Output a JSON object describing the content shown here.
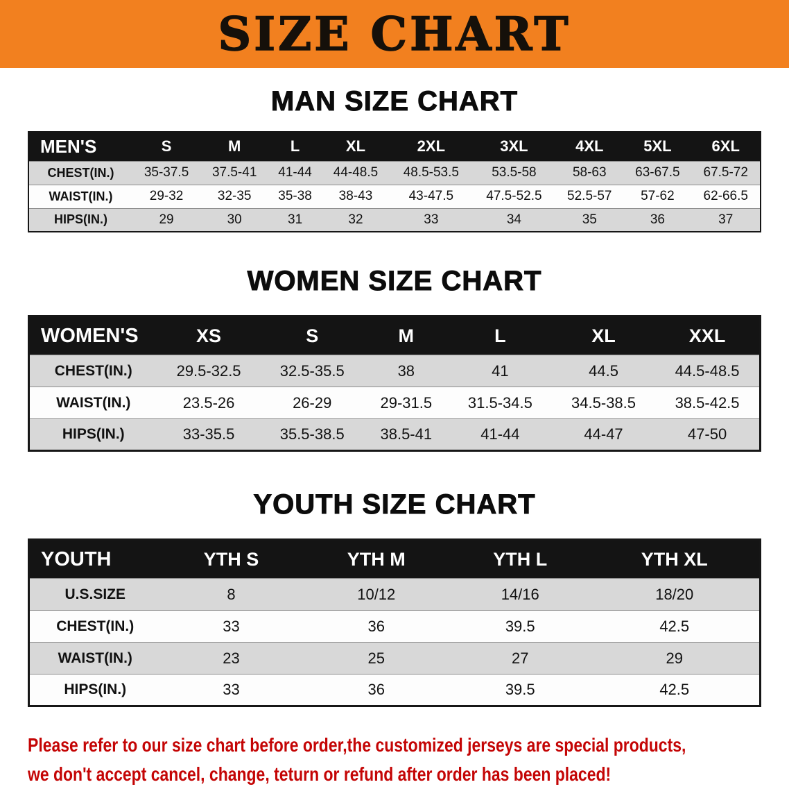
{
  "banner": {
    "title": "SIZE CHART",
    "bg_color": "#f2801f",
    "text_color": "#15100a"
  },
  "sections": [
    {
      "heading": "MAN SIZE CHART",
      "table": {
        "header": [
          "MEN'S",
          "S",
          "M",
          "L",
          "XL",
          "2XL",
          "3XL",
          "4XL",
          "5XL",
          "6XL"
        ],
        "rows": [
          [
            "CHEST(IN.)",
            "35-37.5",
            "37.5-41",
            "41-44",
            "44-48.5",
            "48.5-53.5",
            "53.5-58",
            "58-63",
            "63-67.5",
            "67.5-72"
          ],
          [
            "WAIST(IN.)",
            "29-32",
            "32-35",
            "35-38",
            "38-43",
            "43-47.5",
            "47.5-52.5",
            "52.5-57",
            "57-62",
            "62-66.5"
          ],
          [
            "HIPS(IN.)",
            "29",
            "30",
            "31",
            "32",
            "33",
            "34",
            "35",
            "36",
            "37"
          ]
        ]
      }
    },
    {
      "heading": "WOMEN SIZE CHART",
      "table": {
        "header": [
          "WOMEN'S",
          "XS",
          "S",
          "M",
          "L",
          "XL",
          "XXL"
        ],
        "rows": [
          [
            "CHEST(IN.)",
            "29.5-32.5",
            "32.5-35.5",
            "38",
            "41",
            "44.5",
            "44.5-48.5"
          ],
          [
            "WAIST(IN.)",
            "23.5-26",
            "26-29",
            "29-31.5",
            "31.5-34.5",
            "34.5-38.5",
            "38.5-42.5"
          ],
          [
            "HIPS(IN.)",
            "33-35.5",
            "35.5-38.5",
            "38.5-41",
            "41-44",
            "44-47",
            "47-50"
          ]
        ]
      }
    },
    {
      "heading": "YOUTH SIZE CHART",
      "table": {
        "header": [
          "YOUTH",
          "YTH S",
          "YTH M",
          "YTH L",
          "YTH XL"
        ],
        "rows": [
          [
            "U.S.SIZE",
            "8",
            "10/12",
            "14/16",
            "18/20"
          ],
          [
            "CHEST(IN.)",
            "33",
            "36",
            "39.5",
            "42.5"
          ],
          [
            "WAIST(IN.)",
            "23",
            "25",
            "27",
            "29"
          ],
          [
            "HIPS(IN.)",
            "33",
            "36",
            "39.5",
            "42.5"
          ]
        ]
      }
    }
  ],
  "footer_note": {
    "color": "#c40505",
    "lines": [
      "Please refer to our size chart before order,the customized jerseys are special products,",
      "we don't accept cancel, change, teturn or refund after order has been placed!"
    ]
  }
}
